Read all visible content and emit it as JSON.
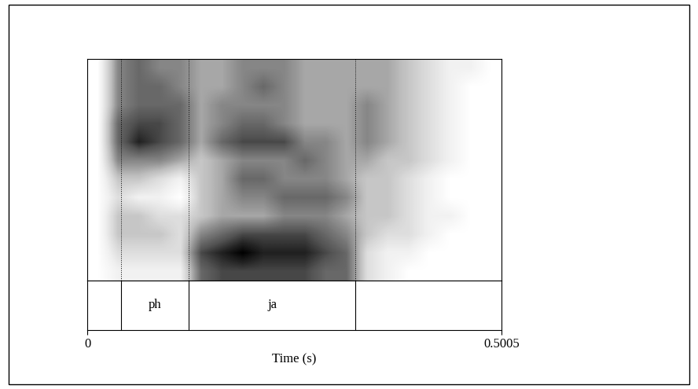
{
  "chart_data": {
    "type": "spectrogram",
    "x_label": "Time (s)",
    "xlim": [
      0,
      0.5005
    ],
    "xticks": [
      0,
      0.5005
    ],
    "tick_labels": "x",
    "intensity_range": [
      0,
      9
    ],
    "cells": [
      [
        0,
        5,
        6,
        5,
        5,
        4,
        4,
        5,
        5,
        5,
        4,
        4,
        4,
        4,
        4,
        3,
        2,
        1,
        1,
        0
      ],
      [
        0,
        5,
        6,
        6,
        5,
        4,
        4,
        5,
        6,
        5,
        4,
        4,
        4,
        4,
        4,
        3,
        2,
        1,
        0,
        0
      ],
      [
        0,
        5,
        6,
        6,
        6,
        4,
        5,
        5,
        5,
        5,
        4,
        4,
        4,
        5,
        4,
        3,
        2,
        1,
        0,
        0
      ],
      [
        0,
        6,
        7,
        7,
        6,
        4,
        5,
        6,
        6,
        5,
        4,
        4,
        4,
        5,
        4,
        3,
        2,
        1,
        0,
        0
      ],
      [
        0,
        6,
        8,
        7,
        6,
        4,
        6,
        7,
        7,
        7,
        5,
        5,
        4,
        5,
        4,
        3,
        2,
        1,
        0,
        0
      ],
      [
        0,
        5,
        5,
        5,
        4,
        3,
        4,
        5,
        5,
        5,
        6,
        5,
        4,
        4,
        3,
        3,
        2,
        1,
        0,
        0
      ],
      [
        0,
        3,
        3,
        2,
        1,
        3,
        4,
        6,
        6,
        5,
        5,
        5,
        4,
        3,
        3,
        2,
        1,
        0,
        0,
        0
      ],
      [
        0,
        2,
        1,
        1,
        0,
        3,
        4,
        5,
        5,
        6,
        6,
        6,
        5,
        3,
        3,
        2,
        1,
        0,
        0,
        0
      ],
      [
        0,
        3,
        3,
        2,
        2,
        3,
        4,
        4,
        4,
        5,
        5,
        5,
        4,
        3,
        3,
        2,
        1,
        1,
        0,
        0
      ],
      [
        0,
        3,
        3,
        3,
        2,
        5,
        6,
        7,
        7,
        7,
        7,
        6,
        5,
        3,
        2,
        2,
        1,
        0,
        0,
        0
      ],
      [
        0,
        2,
        2,
        2,
        2,
        7,
        8,
        9,
        8,
        8,
        8,
        7,
        6,
        2,
        1,
        1,
        0,
        0,
        0,
        0
      ],
      [
        0,
        1,
        1,
        1,
        1,
        6,
        7,
        7,
        7,
        7,
        7,
        6,
        6,
        2,
        1,
        0,
        0,
        0,
        0,
        0
      ]
    ],
    "intervals": [
      {
        "start": 0.0408,
        "end": 0.1225,
        "label": "ph"
      },
      {
        "start": 0.1225,
        "end": 0.3239,
        "label": "ja"
      }
    ]
  }
}
